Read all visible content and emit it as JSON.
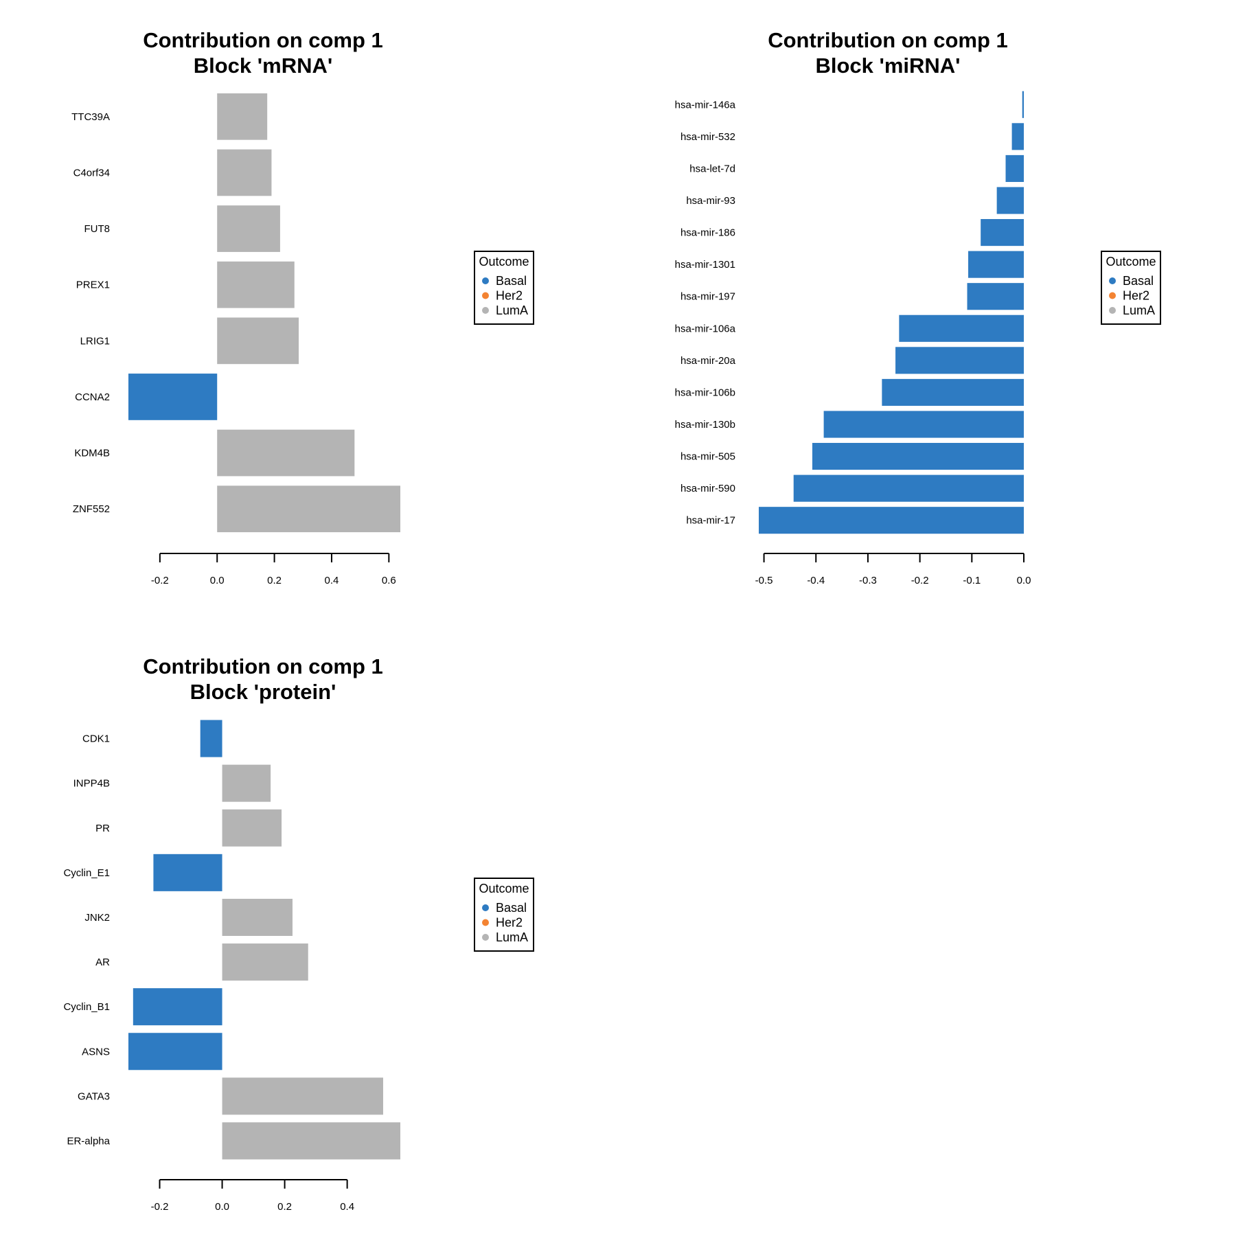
{
  "colors": {
    "Basal": "#2E7BC2",
    "Her2": "#F38332",
    "LumA": "#B4B4B4"
  },
  "chart_data": [
    {
      "type": "bar",
      "orientation": "horizontal",
      "title": [
        "Contribution on comp 1",
        "Block 'mRNA'"
      ],
      "xlabel": "",
      "ylabel": "",
      "xlim": [
        -0.31,
        0.64
      ],
      "xticks": [
        -0.2,
        0.0,
        0.2,
        0.4,
        0.6
      ],
      "xtick_labels": [
        "-0.2",
        "0.0",
        "0.2",
        "0.4",
        "0.6"
      ],
      "categories": [
        "TTC39A",
        "C4orf34",
        "FUT8",
        "PREX1",
        "LRIG1",
        "CCNA2",
        "KDM4B",
        "ZNF552"
      ],
      "values": [
        0.175,
        0.19,
        0.22,
        0.27,
        0.285,
        -0.31,
        0.48,
        0.64
      ],
      "groups": [
        "LumA",
        "LumA",
        "LumA",
        "LumA",
        "LumA",
        "Basal",
        "LumA",
        "LumA"
      ],
      "legend": {
        "title": "Outcome",
        "entries": [
          "Basal",
          "Her2",
          "LumA"
        ],
        "placement": "right"
      },
      "grid": false
    },
    {
      "type": "bar",
      "orientation": "horizontal",
      "title": [
        "Contribution on comp 1",
        "Block 'miRNA'"
      ],
      "xlabel": "",
      "ylabel": "",
      "xlim": [
        -0.51,
        0.0
      ],
      "xticks": [
        -0.5,
        -0.4,
        -0.3,
        -0.2,
        -0.1,
        0.0
      ],
      "xtick_labels": [
        "-0.5",
        "-0.4",
        "-0.3",
        "-0.2",
        "-0.1",
        "0.0"
      ],
      "categories": [
        "hsa-mir-146a",
        "hsa-mir-532",
        "hsa-let-7d",
        "hsa-mir-93",
        "hsa-mir-186",
        "hsa-mir-1301",
        "hsa-mir-197",
        "hsa-mir-106a",
        "hsa-mir-20a",
        "hsa-mir-106b",
        "hsa-mir-130b",
        "hsa-mir-505",
        "hsa-mir-590",
        "hsa-mir-17"
      ],
      "values": [
        -0.003,
        -0.023,
        -0.035,
        -0.052,
        -0.083,
        -0.107,
        -0.109,
        -0.24,
        -0.247,
        -0.273,
        -0.385,
        -0.407,
        -0.443,
        -0.51
      ],
      "groups": [
        "Basal",
        "Basal",
        "Basal",
        "Basal",
        "Basal",
        "Basal",
        "Basal",
        "Basal",
        "Basal",
        "Basal",
        "Basal",
        "Basal",
        "Basal",
        "Basal"
      ],
      "legend": {
        "title": "Outcome",
        "entries": [
          "Basal",
          "Her2",
          "LumA"
        ],
        "placement": "right"
      },
      "grid": false
    },
    {
      "type": "bar",
      "orientation": "horizontal",
      "title": [
        "Contribution on comp 1",
        "Block 'protein'"
      ],
      "xlabel": "",
      "ylabel": "",
      "xlim": [
        -0.3,
        0.57
      ],
      "xticks": [
        -0.2,
        0.0,
        0.2,
        0.4
      ],
      "xtick_labels": [
        "-0.2",
        "0.0",
        "0.2",
        "0.4"
      ],
      "categories": [
        "CDK1",
        "INPP4B",
        "PR",
        "Cyclin_E1",
        "JNK2",
        "AR",
        "Cyclin_B1",
        "ASNS",
        "GATA3",
        "ER-alpha"
      ],
      "values": [
        -0.07,
        0.155,
        0.19,
        -0.22,
        0.225,
        0.275,
        -0.285,
        -0.3,
        0.515,
        0.57
      ],
      "groups": [
        "Basal",
        "LumA",
        "LumA",
        "Basal",
        "LumA",
        "LumA",
        "Basal",
        "Basal",
        "LumA",
        "LumA"
      ],
      "legend": {
        "title": "Outcome",
        "entries": [
          "Basal",
          "Her2",
          "LumA"
        ],
        "placement": "right"
      },
      "grid": false
    }
  ]
}
